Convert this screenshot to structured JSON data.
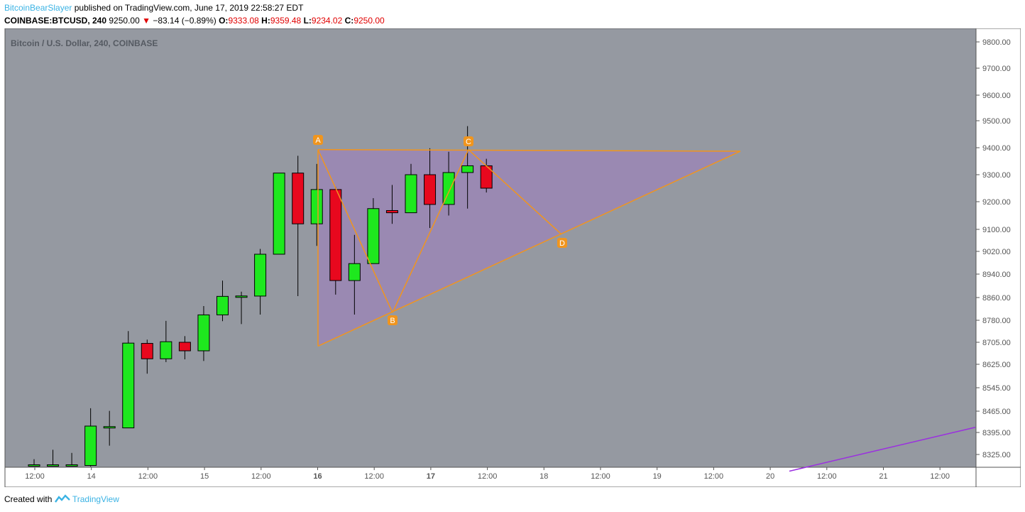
{
  "header": {
    "author": "BitcoinBearSlayer",
    "published_text": "published on TradingView.com, June 17, 2019 22:58:27 EDT",
    "symbol": "COINBASE:BTCUSD, 240",
    "last": "9250.00",
    "change_arrow": "▼",
    "change": "−83.14 (−0.89%)",
    "open_label": "O:",
    "open": "9333.08",
    "high_label": "H:",
    "high": "9359.48",
    "low_label": "L:",
    "low": "9234.02",
    "close_label": "C:",
    "close": "9250.00"
  },
  "footer": {
    "created_with": "Created with",
    "brand": "TradingView"
  },
  "colors": {
    "plot_bg": "#9599a1",
    "up": "#1ee81e",
    "down": "#e8081e",
    "pattern_line": "#f0951e",
    "pattern_fill": "#9b86b5",
    "trend_line": "#9b2fe0",
    "header_red": "#e00000",
    "brand_blue": "#3bb3e4"
  },
  "chart_data": {
    "type": "candlestick",
    "title": "Bitcoin / U.S. Dollar, 240, COINBASE",
    "y_ticks": [
      "9800.00",
      "9700.00",
      "9600.00",
      "9500.00",
      "9400.00",
      "9300.00",
      "9200.00",
      "9100.00",
      "9020.00",
      "8940.00",
      "8860.00",
      "8780.00",
      "8705.00",
      "8625.00",
      "8545.00",
      "8465.00",
      "8395.00",
      "8325.00"
    ],
    "x_ticks": [
      "12:00",
      "14",
      "12:00",
      "15",
      "12:00",
      "16",
      "12:00",
      "17",
      "12:00",
      "18",
      "12:00",
      "19",
      "12:00",
      "20",
      "12:00",
      "21",
      "12:00"
    ],
    "ylim": [
      8280,
      9830
    ],
    "grid": false,
    "candles": [
      {
        "o": 8290,
        "h": 8310,
        "l": 8280,
        "c": 8290
      },
      {
        "o": 8290,
        "h": 8340,
        "l": 8280,
        "c": 8290
      },
      {
        "o": 8290,
        "h": 8330,
        "l": 8280,
        "c": 8290
      },
      {
        "o": 8290,
        "h": 8475,
        "l": 8280,
        "c": 8416
      },
      {
        "o": 8412,
        "h": 8466,
        "l": 8353,
        "c": 8412
      },
      {
        "o": 8410,
        "h": 8743,
        "l": 8410,
        "c": 8702
      },
      {
        "o": 8701,
        "h": 8714,
        "l": 8593,
        "c": 8645
      },
      {
        "o": 8645,
        "h": 8778,
        "l": 8633,
        "c": 8707
      },
      {
        "o": 8705,
        "h": 8726,
        "l": 8643,
        "c": 8674
      },
      {
        "o": 8674,
        "h": 8830,
        "l": 8637,
        "c": 8799
      },
      {
        "o": 8799,
        "h": 8918,
        "l": 8777,
        "c": 8864
      },
      {
        "o": 8863,
        "h": 8880,
        "l": 8767,
        "c": 8863
      },
      {
        "o": 8865,
        "h": 9029,
        "l": 8800,
        "c": 9010
      },
      {
        "o": 9010,
        "h": 9306,
        "l": 9010,
        "c": 9306
      },
      {
        "o": 9306,
        "h": 9370,
        "l": 8865,
        "c": 9120
      },
      {
        "o": 9120,
        "h": 9340,
        "l": 9040,
        "c": 9245
      },
      {
        "o": 9245,
        "h": 9255,
        "l": 8870,
        "c": 8918
      },
      {
        "o": 8918,
        "h": 9080,
        "l": 8800,
        "c": 8977
      },
      {
        "o": 8977,
        "h": 9213,
        "l": 8977,
        "c": 9175
      },
      {
        "o": 9168,
        "h": 9262,
        "l": 9120,
        "c": 9160
      },
      {
        "o": 9160,
        "h": 9340,
        "l": 9160,
        "c": 9300
      },
      {
        "o": 9300,
        "h": 9398,
        "l": 9105,
        "c": 9190
      },
      {
        "o": 9190,
        "h": 9385,
        "l": 9150,
        "c": 9308
      },
      {
        "o": 9308,
        "h": 9480,
        "l": 9175,
        "c": 9333
      },
      {
        "o": 9333,
        "h": 9359,
        "l": 9234,
        "c": 9250
      }
    ],
    "pattern": {
      "points": [
        {
          "label": "A",
          "value": 9393
        },
        {
          "label": "B",
          "value": 8807
        },
        {
          "label": "C",
          "value": 9393
        },
        {
          "label": "D",
          "value": 9082
        }
      ],
      "triangle_extension_value": 9387,
      "triangle_lower_start_value": 8691
    },
    "trend_line": {
      "start_value": 8272,
      "end_value": 8412
    }
  }
}
